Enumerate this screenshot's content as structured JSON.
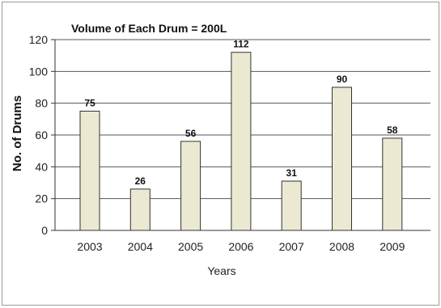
{
  "chart_data": {
    "type": "bar",
    "title": "Volume of Each Drum = 200L",
    "xlabel": "Years",
    "ylabel": "No. of Drums",
    "categories": [
      "2003",
      "2004",
      "2005",
      "2006",
      "2007",
      "2008",
      "2009"
    ],
    "values": [
      75,
      26,
      56,
      112,
      31,
      90,
      58
    ],
    "data_labels": [
      "75",
      "26",
      "56",
      "112",
      "31",
      "90",
      "58"
    ],
    "ylim": [
      0,
      120
    ],
    "yticks": [
      0,
      20,
      40,
      60,
      80,
      100,
      120
    ],
    "ytick_labels": [
      "0",
      "20",
      "40",
      "60",
      "80",
      "100",
      "120"
    ],
    "grid": "horizontal",
    "legend": "none",
    "colors": {
      "bar_fill": "#ece9d2",
      "bar_stroke": "#333333",
      "grid": "#555555",
      "axis": "#333333"
    }
  }
}
